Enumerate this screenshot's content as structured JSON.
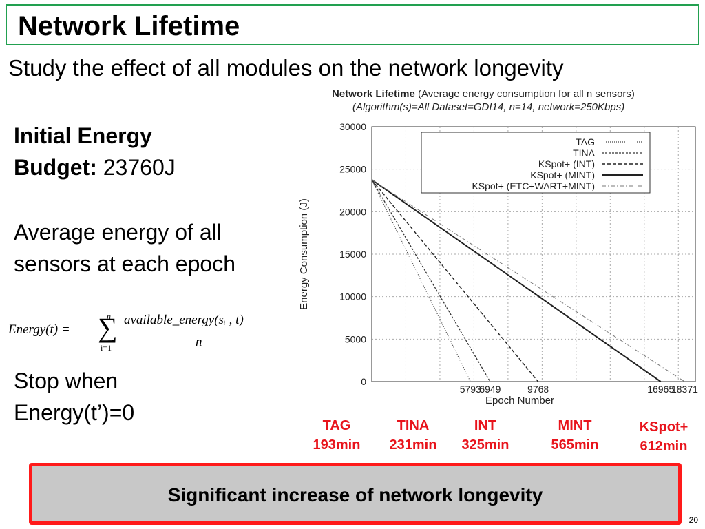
{
  "slide": {
    "title": "Network Lifetime",
    "subtitle": "Study the effect of all modules on the network longevity",
    "energy_label_1": "Initial Energy",
    "energy_label_2": "Budget:",
    "energy_value": "23760J",
    "avg_text": "Average energy of all sensors at each epoch",
    "stop_text_1": "Stop when",
    "stop_text_2": "Energy(t’)=0",
    "formula": {
      "lhs": "Energy(t) =",
      "sum_upper": "n",
      "sum_lower": "i=1",
      "numerator": "available_energy(sᵢ , t)",
      "denominator": "n"
    },
    "banner": "Significant increase of network longevity",
    "page_number": "20"
  },
  "lifetimes": [
    {
      "name": "TAG",
      "time": "193min"
    },
    {
      "name": "TINA",
      "time": "231min"
    },
    {
      "name": "INT",
      "time": "325min"
    },
    {
      "name": "MINT",
      "time": "565min"
    },
    {
      "name": "KSpot+",
      "time": "612min"
    }
  ],
  "chart_data": {
    "type": "line",
    "title_bold": "Network Lifetime",
    "title_rest": "(Average energy consumption for all n sensors)",
    "subtitle": "(Algorithm(s)=All Dataset=GDI14, n=14, network=250Kbps)",
    "xlabel": "Epoch Number",
    "ylabel": "Energy Consumption (J)",
    "xlim": [
      0,
      19000
    ],
    "ylim": [
      0,
      30000
    ],
    "yticks": [
      0,
      5000,
      10000,
      15000,
      20000,
      25000,
      30000
    ],
    "xticks": [
      5793,
      6949,
      9768,
      16965,
      18371
    ],
    "grid": true,
    "legend_position": "top-right",
    "series": [
      {
        "name": "TAG",
        "style": "dotted",
        "x": [
          0,
          5793
        ],
        "y": [
          23760,
          0
        ]
      },
      {
        "name": "TINA",
        "style": "dashed-fine",
        "x": [
          0,
          6949
        ],
        "y": [
          23760,
          0
        ]
      },
      {
        "name": "KSpot+ (INT)",
        "style": "dashed",
        "x": [
          0,
          9768
        ],
        "y": [
          23760,
          0
        ]
      },
      {
        "name": "KSpot+ (MINT)",
        "style": "solid",
        "x": [
          0,
          16965
        ],
        "y": [
          23760,
          0
        ]
      },
      {
        "name": "KSpot+ (ETC+WART+MINT)",
        "style": "dash-dot",
        "x": [
          0,
          18371
        ],
        "y": [
          23760,
          0
        ]
      }
    ]
  }
}
